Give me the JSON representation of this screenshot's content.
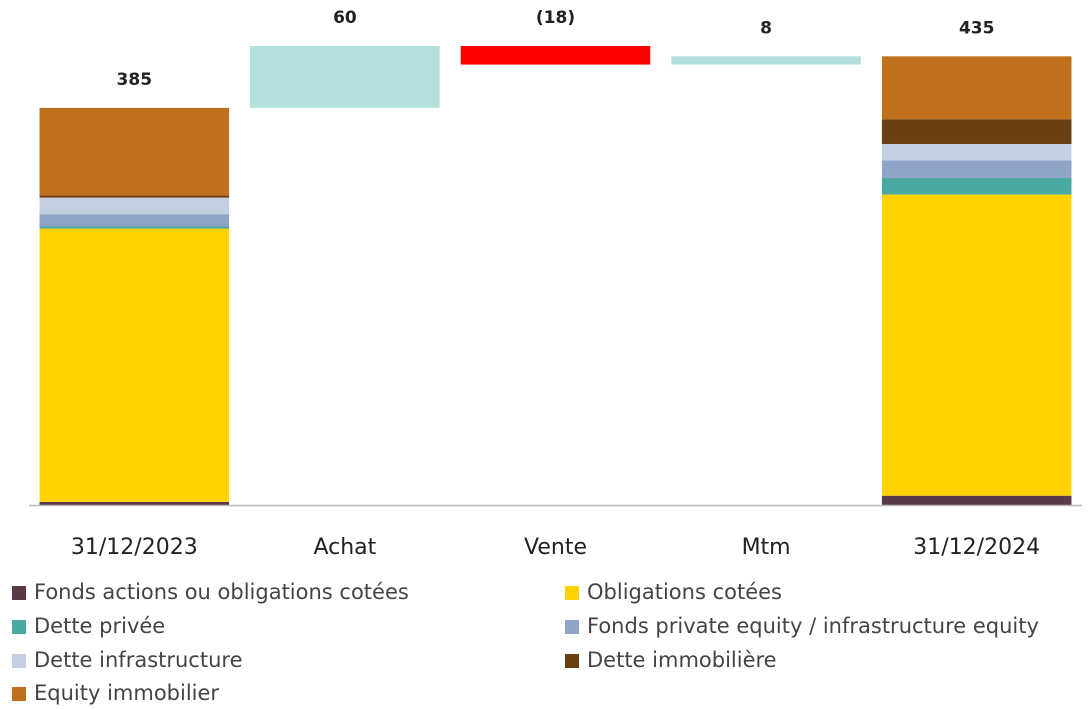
{
  "chart_data": {
    "type": "waterfall",
    "categories": [
      "31/12/2023",
      "Achat",
      "Vente",
      "Mtm",
      "31/12/2024"
    ],
    "values": [
      385,
      60,
      -18,
      8,
      435
    ],
    "value_labels": [
      "385",
      "60",
      "(18)",
      "8",
      "435"
    ],
    "kinds": [
      "total",
      "step",
      "step",
      "step",
      "total"
    ],
    "increase_color": "#b3e0dc",
    "decrease_color": "#ff0000",
    "series": [
      {
        "name": "Fonds actions ou obligations cotées",
        "color": "#5a3a4a",
        "values": [
          3,
          null,
          null,
          null,
          9
        ]
      },
      {
        "name": "Obligations cotées",
        "color": "#ffd200",
        "values": [
          265,
          null,
          null,
          null,
          292
        ]
      },
      {
        "name": "Dette privée",
        "color": "#4aa9a0",
        "values": [
          2,
          null,
          null,
          null,
          16
        ]
      },
      {
        "name": "Fonds private equity / infrastructure equity",
        "color": "#8fa5c8",
        "values": [
          12,
          null,
          null,
          null,
          17
        ]
      },
      {
        "name": "Dette infrastructure",
        "color": "#c5cfe2",
        "values": [
          16,
          null,
          null,
          null,
          16
        ]
      },
      {
        "name": "Dette immobilière",
        "color": "#6b3f14",
        "values": [
          2,
          null,
          null,
          null,
          24
        ]
      },
      {
        "name": "Equity immobilier",
        "color": "#c0701c",
        "values": [
          85,
          null,
          null,
          null,
          61
        ]
      }
    ],
    "ylim": [
      0,
      445
    ],
    "legend": "bottom"
  }
}
